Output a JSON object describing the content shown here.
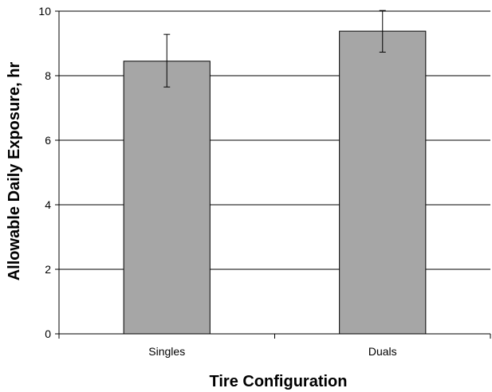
{
  "chart_data": {
    "type": "bar",
    "title": "",
    "xlabel": "Tire Configuration",
    "ylabel": "Allowable Daily Exposure, hr",
    "categories": [
      "Singles",
      "Duals"
    ],
    "values": [
      8.45,
      9.38
    ],
    "error_bars": [
      {
        "low": 7.65,
        "high": 9.28
      },
      {
        "low": 8.73,
        "high": 10.02
      }
    ],
    "ylim": [
      0,
      10
    ],
    "yticks": [
      0,
      2,
      4,
      6,
      8,
      10
    ],
    "grid": true,
    "legend": "none",
    "bar_color": "#a6a6a6",
    "bar_edge_color": "#000000"
  }
}
